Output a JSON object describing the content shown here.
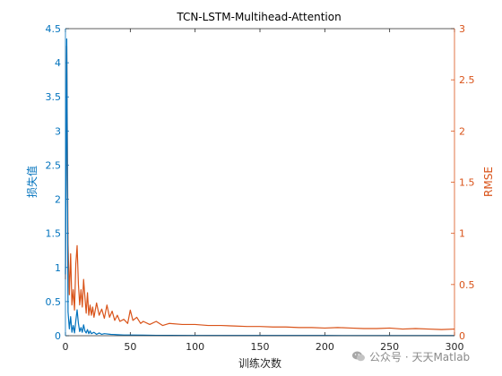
{
  "chart_data": {
    "type": "line",
    "title": "TCN-LSTM-Multihead-Attention",
    "xlabel": "训练次数",
    "xlim": [
      0,
      300
    ],
    "xticks": [
      0,
      50,
      100,
      150,
      200,
      250,
      300
    ],
    "left_axis": {
      "label": "损失值",
      "ylim": [
        0,
        4.5
      ],
      "ticks": [
        "0",
        "0.5",
        "1",
        "1.5",
        "2",
        "2.5",
        "3",
        "3.5",
        "4",
        "4.5"
      ],
      "color": "#0072bd"
    },
    "right_axis": {
      "label": "RMSE",
      "ylim": [
        0,
        3
      ],
      "ticks": [
        "0",
        "0.5",
        "1",
        "1.5",
        "2",
        "2.5",
        "3"
      ],
      "color": "#d95319"
    },
    "series": [
      {
        "axis": "left",
        "color": "#0072bd",
        "x": [
          0,
          1,
          2,
          3,
          4,
          5,
          6,
          7,
          8,
          9,
          10,
          11,
          12,
          13,
          14,
          15,
          16,
          17,
          18,
          19,
          20,
          22,
          24,
          26,
          28,
          30,
          35,
          40,
          45,
          50,
          60,
          70,
          80,
          100,
          150,
          200,
          250,
          300
        ],
        "y": [
          0.9,
          4.35,
          0.35,
          0.1,
          0.28,
          0.05,
          0.15,
          0.04,
          0.22,
          0.38,
          0.18,
          0.06,
          0.12,
          0.05,
          0.16,
          0.07,
          0.04,
          0.09,
          0.03,
          0.07,
          0.03,
          0.05,
          0.02,
          0.04,
          0.02,
          0.03,
          0.02,
          0.015,
          0.01,
          0.01,
          0.008,
          0.006,
          0.005,
          0.004,
          0.003,
          0.003,
          0.002,
          0.002
        ]
      },
      {
        "axis": "right",
        "color": "#d95319",
        "x": [
          0,
          1,
          2,
          3,
          4,
          5,
          6,
          7,
          8,
          9,
          10,
          11,
          12,
          13,
          14,
          15,
          16,
          17,
          18,
          19,
          20,
          21,
          22,
          24,
          26,
          28,
          30,
          32,
          34,
          36,
          38,
          40,
          42,
          45,
          48,
          50,
          52,
          55,
          58,
          60,
          65,
          70,
          75,
          80,
          90,
          100,
          110,
          120,
          130,
          140,
          150,
          160,
          170,
          180,
          190,
          200,
          210,
          220,
          230,
          240,
          250,
          260,
          270,
          280,
          290,
          300
        ],
        "y": [
          0.55,
          2.83,
          0.9,
          0.4,
          0.8,
          0.3,
          0.45,
          0.25,
          0.7,
          0.88,
          0.5,
          0.3,
          0.45,
          0.28,
          0.55,
          0.38,
          0.22,
          0.42,
          0.2,
          0.3,
          0.2,
          0.28,
          0.18,
          0.32,
          0.2,
          0.26,
          0.17,
          0.3,
          0.18,
          0.24,
          0.15,
          0.2,
          0.14,
          0.16,
          0.12,
          0.25,
          0.15,
          0.18,
          0.12,
          0.14,
          0.11,
          0.14,
          0.1,
          0.12,
          0.11,
          0.11,
          0.1,
          0.1,
          0.095,
          0.09,
          0.09,
          0.085,
          0.085,
          0.08,
          0.08,
          0.075,
          0.08,
          0.075,
          0.07,
          0.07,
          0.075,
          0.065,
          0.07,
          0.065,
          0.06,
          0.065
        ]
      }
    ]
  },
  "watermark": {
    "text": "公众号 · 天天Matlab"
  }
}
